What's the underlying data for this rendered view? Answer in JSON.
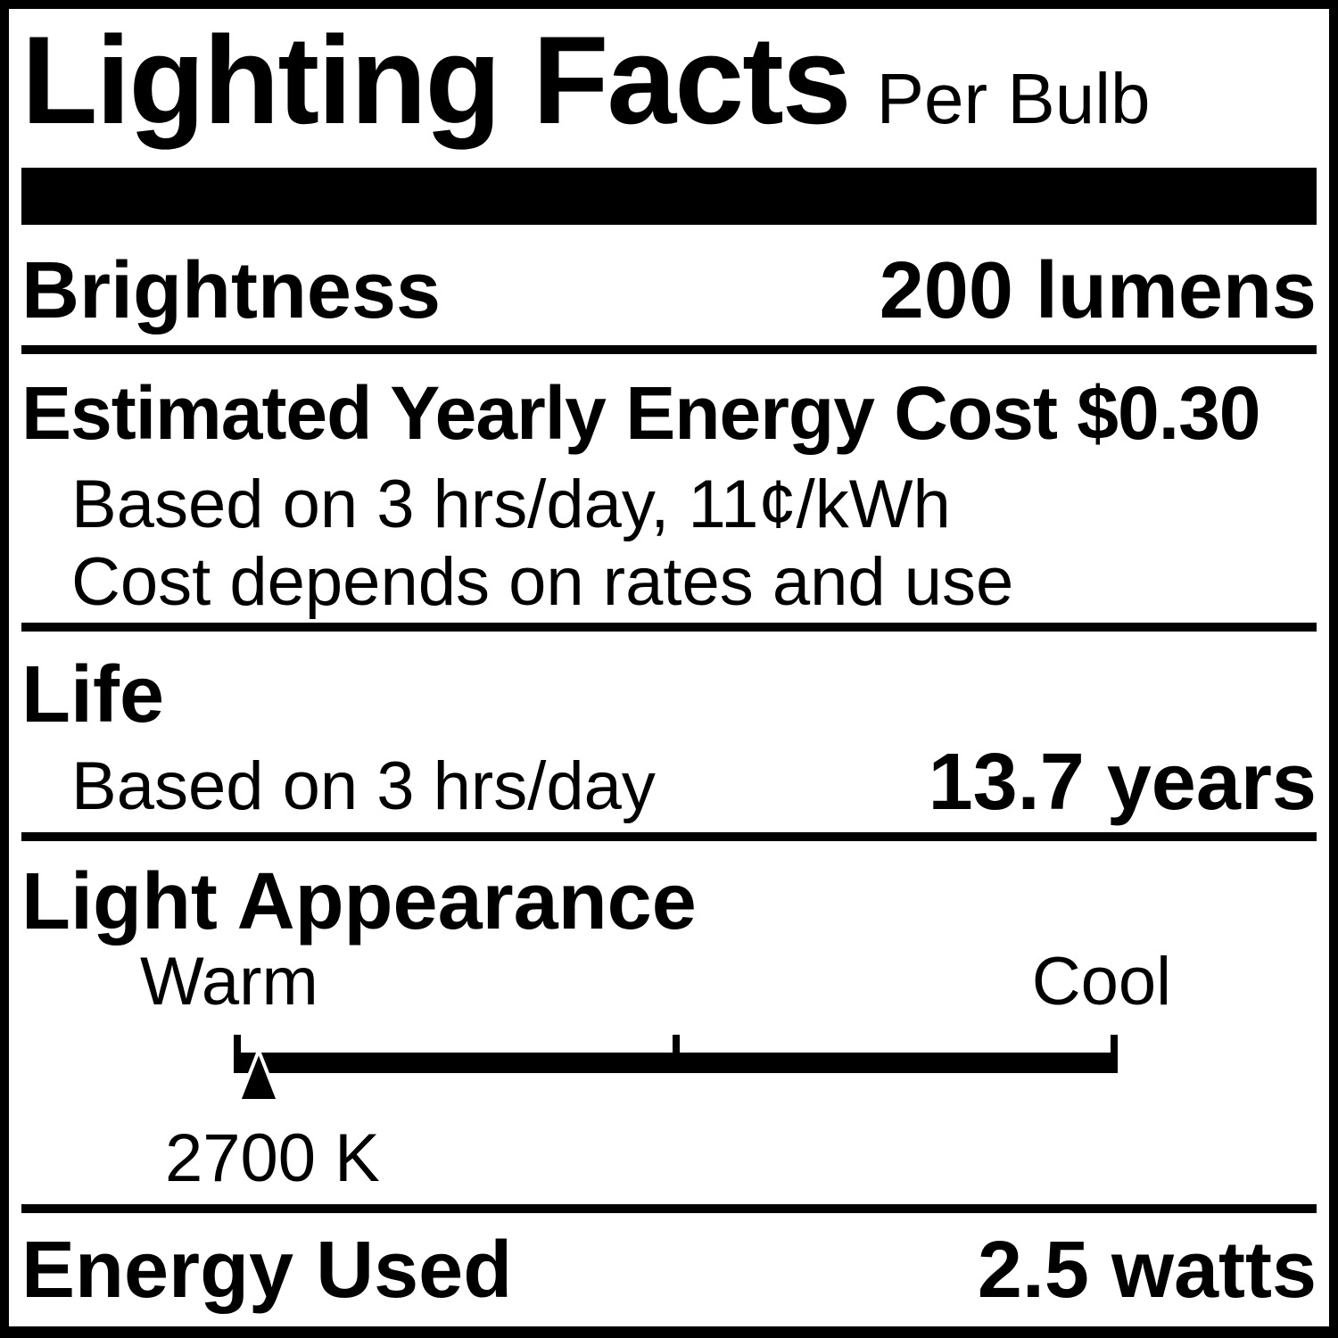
{
  "header": {
    "title": "Lighting Facts",
    "subtitle": "Per Bulb"
  },
  "brightness": {
    "label": "Brightness",
    "value": "200 lumens"
  },
  "energy_cost": {
    "headline": "Estimated Yearly Energy Cost $0.30",
    "basis": "Based on 3 hrs/day, 11¢/kWh",
    "note": "Cost depends on rates and use"
  },
  "life": {
    "label": "Life",
    "basis": "Based on 3 hrs/day",
    "value": "13.7 years"
  },
  "light_appearance": {
    "label": "Light Appearance",
    "warm": "Warm",
    "cool": "Cool",
    "kelvin": "2700 K",
    "marker_position_pct": 2.8
  },
  "energy_used": {
    "label": "Energy Used",
    "value": "2.5 watts"
  },
  "colors": {
    "ink": "#000000",
    "paper": "#ffffff"
  }
}
